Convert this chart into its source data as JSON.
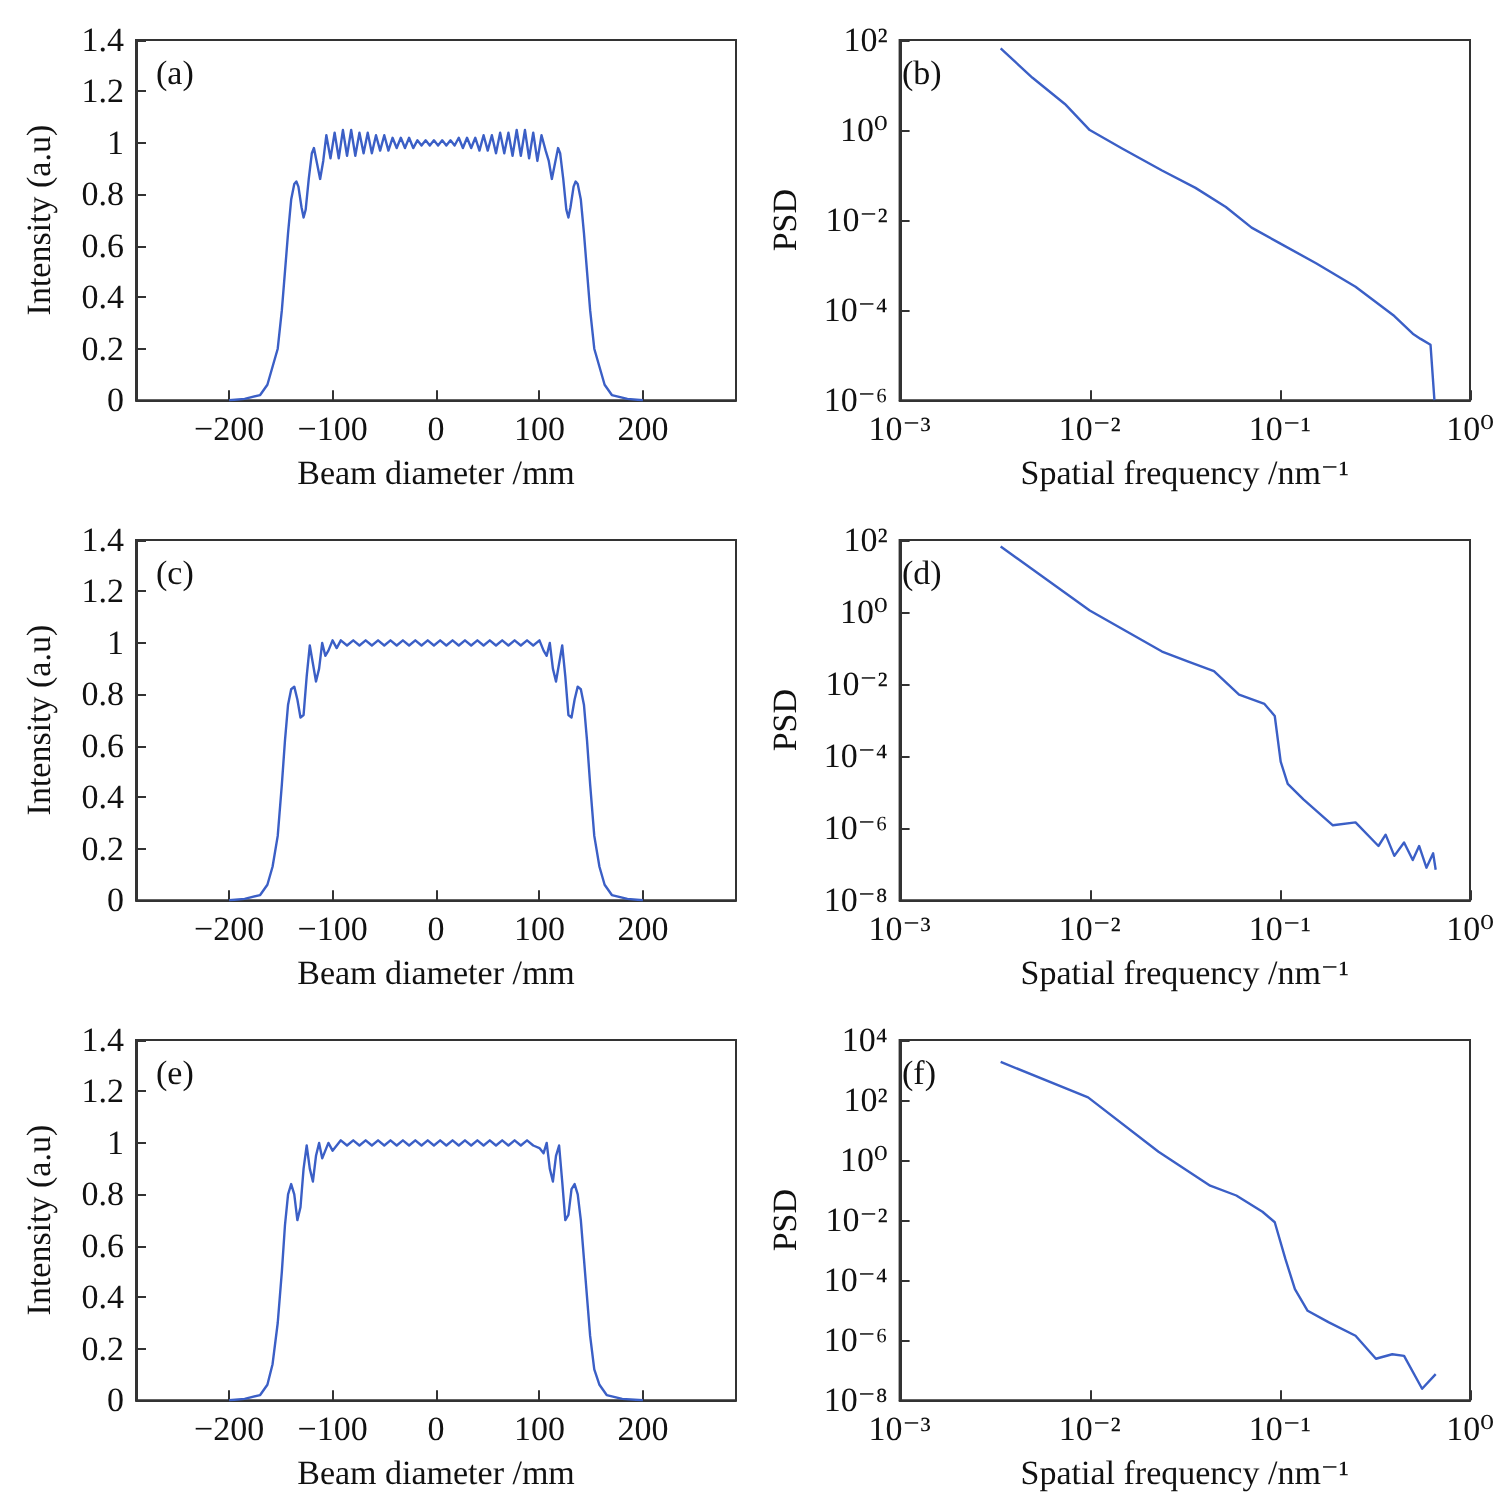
{
  "chart_data": [
    {
      "type": "line",
      "color": "#3b5fc6",
      "xlabel": "Beam diameter /mm",
      "ylabel": "Intensity (a.u)",
      "annotations": [
        "(a)"
      ],
      "xlim": [
        -290,
        290
      ],
      "ylim": [
        0,
        1.4
      ],
      "xticks": [
        {
          "value": -200,
          "label": "−200"
        },
        {
          "value": -100,
          "label": "−100"
        },
        0,
        100,
        200
      ],
      "yticks": [
        0,
        0.2,
        0.4,
        0.6,
        0.8,
        1,
        1.2,
        1.4
      ],
      "x": [
        -200,
        -185,
        -170,
        -163,
        -158,
        -153,
        -149,
        -146,
        -143,
        -140,
        -137,
        -135,
        -133,
        -130,
        -128,
        -126,
        -123,
        -120,
        -118,
        -115,
        -112,
        -109,
        -106,
        -102,
        -98,
        -94,
        -90,
        -86,
        -82,
        -78,
        -74,
        -70,
        -66,
        -62,
        -58,
        -54,
        -50,
        -46,
        -42,
        -38,
        -34,
        -30,
        -26,
        -22,
        -18,
        -14,
        -10,
        -6,
        -2,
        2,
        6,
        10,
        14,
        18,
        22,
        26,
        30,
        34,
        38,
        42,
        46,
        50,
        54,
        58,
        62,
        66,
        70,
        74,
        78,
        82,
        86,
        90,
        94,
        98,
        102,
        106,
        109,
        112,
        115,
        118,
        120,
        123,
        126,
        128,
        130,
        133,
        135,
        137,
        140,
        143,
        146,
        149,
        153,
        158,
        163,
        170,
        185,
        200
      ],
      "values": [
        0,
        0.005,
        0.02,
        0.06,
        0.13,
        0.2,
        0.35,
        0.5,
        0.65,
        0.78,
        0.84,
        0.85,
        0.83,
        0.75,
        0.71,
        0.74,
        0.86,
        0.96,
        0.98,
        0.92,
        0.86,
        0.93,
        1.03,
        0.94,
        1.04,
        0.94,
        1.05,
        0.95,
        1.05,
        0.95,
        1.04,
        0.96,
        1.04,
        0.96,
        1.03,
        0.97,
        1.03,
        0.97,
        1.02,
        0.98,
        1.02,
        0.98,
        1.02,
        0.98,
        1.01,
        0.99,
        1.01,
        0.99,
        1.01,
        0.99,
        1.01,
        0.99,
        1.01,
        0.99,
        1.02,
        0.98,
        1.02,
        0.98,
        1.02,
        0.97,
        1.03,
        0.97,
        1.03,
        0.96,
        1.04,
        0.96,
        1.04,
        0.95,
        1.05,
        0.95,
        1.05,
        0.94,
        1.04,
        0.93,
        1.03,
        0.97,
        0.93,
        0.86,
        0.92,
        0.98,
        0.96,
        0.86,
        0.74,
        0.71,
        0.75,
        0.83,
        0.85,
        0.84,
        0.78,
        0.65,
        0.5,
        0.35,
        0.2,
        0.13,
        0.06,
        0.02,
        0.005,
        0
      ]
    },
    {
      "type": "line",
      "color": "#3b5fc6",
      "xlabel": "Spatial frequency /nm⁻¹",
      "ylabel": "PSD",
      "annotations": [
        "(b)"
      ],
      "log": "xy",
      "xlim": [
        0.001,
        1
      ],
      "ylim": [
        1e-06,
        100
      ],
      "xticks": [
        {
          "value": 0.001,
          "label": "10⁻³"
        },
        {
          "value": 0.01,
          "label": "10⁻²"
        },
        {
          "value": 0.1,
          "label": "10⁻¹"
        },
        {
          "value": 1,
          "label": "10⁰"
        }
      ],
      "yticks": [
        {
          "value": 1e-06,
          "label": "10⁻⁶"
        },
        {
          "value": 0.0001,
          "label": "10⁻⁴"
        },
        {
          "value": 0.01,
          "label": "10⁻²"
        },
        {
          "value": 1,
          "label": "10⁰"
        },
        {
          "value": 100,
          "label": "10²"
        }
      ],
      "x": [
        0.0034,
        0.005,
        0.0074,
        0.01,
        0.0148,
        0.024,
        0.036,
        0.052,
        0.071,
        0.098,
        0.155,
        0.25,
        0.4,
        0.5,
        0.55,
        0.62,
        0.65
      ],
      "values": [
        65,
        14.5,
        3.8,
        1.0,
        0.39,
        0.126,
        0.052,
        0.0195,
        0.0068,
        0.0032,
        0.0011,
        0.00033,
        7.4e-05,
        3e-05,
        2.3e-05,
        1.7e-05,
        1e-06
      ]
    },
    {
      "type": "line",
      "color": "#3b5fc6",
      "xlabel": "Beam diameter /mm",
      "ylabel": "Intensity (a.u)",
      "annotations": [
        "(c)"
      ],
      "xlim": [
        -290,
        290
      ],
      "ylim": [
        0,
        1.4
      ],
      "xticks": [
        {
          "value": -200,
          "label": "−200"
        },
        {
          "value": -100,
          "label": "−100"
        },
        0,
        100,
        200
      ],
      "yticks": [
        0,
        0.2,
        0.4,
        0.6,
        0.8,
        1,
        1.2,
        1.4
      ],
      "x": [
        -200,
        -185,
        -170,
        -163,
        -158,
        -153,
        -149,
        -146,
        -143,
        -140,
        -137,
        -134,
        -131,
        -128,
        -125,
        -122,
        -119,
        -116,
        -113,
        -110,
        -107,
        -104,
        -100,
        -96,
        -92,
        -86,
        -80,
        -74,
        -68,
        -62,
        -56,
        -50,
        -44,
        -38,
        -32,
        -26,
        -20,
        -14,
        -8,
        -2,
        4,
        10,
        16,
        22,
        28,
        34,
        40,
        46,
        52,
        58,
        64,
        70,
        76,
        82,
        88,
        94,
        100,
        104,
        107,
        110,
        113,
        116,
        119,
        122,
        125,
        128,
        131,
        134,
        137,
        140,
        143,
        146,
        149,
        153,
        158,
        163,
        170,
        185,
        200
      ],
      "values": [
        0,
        0.005,
        0.02,
        0.06,
        0.13,
        0.25,
        0.45,
        0.62,
        0.76,
        0.82,
        0.83,
        0.78,
        0.71,
        0.72,
        0.87,
        0.99,
        0.92,
        0.85,
        0.9,
        1.0,
        0.95,
        0.97,
        1.01,
        0.98,
        1.01,
        0.99,
        1.01,
        0.99,
        1.01,
        0.99,
        1.01,
        0.99,
        1.01,
        0.99,
        1.01,
        0.99,
        1.01,
        0.99,
        1.01,
        0.99,
        1.01,
        0.99,
        1.01,
        0.99,
        1.01,
        0.99,
        1.01,
        0.99,
        1.01,
        0.99,
        1.01,
        0.99,
        1.01,
        0.99,
        1.01,
        0.99,
        1.01,
        0.97,
        0.95,
        1.0,
        0.9,
        0.85,
        0.92,
        0.99,
        0.87,
        0.72,
        0.71,
        0.78,
        0.83,
        0.82,
        0.76,
        0.62,
        0.45,
        0.25,
        0.13,
        0.06,
        0.02,
        0.005,
        0
      ]
    },
    {
      "type": "line",
      "color": "#3b5fc6",
      "xlabel": "Spatial frequency /nm⁻¹",
      "ylabel": "PSD",
      "annotations": [
        "(d)"
      ],
      "log": "xy",
      "xlim": [
        0.001,
        1
      ],
      "ylim": [
        1e-08,
        100
      ],
      "xticks": [
        {
          "value": 0.001,
          "label": "10⁻³"
        },
        {
          "value": 0.01,
          "label": "10⁻²"
        },
        {
          "value": 0.1,
          "label": "10⁻¹"
        },
        {
          "value": 1,
          "label": "10⁰"
        }
      ],
      "yticks": [
        {
          "value": 1e-08,
          "label": "10⁻⁸"
        },
        {
          "value": 1e-06,
          "label": "10⁻⁶"
        },
        {
          "value": 0.0001,
          "label": "10⁻⁴"
        },
        {
          "value": 0.01,
          "label": "10⁻²"
        },
        {
          "value": 1,
          "label": "10⁰"
        },
        {
          "value": 100,
          "label": "10²"
        }
      ],
      "x": [
        0.0034,
        0.01,
        0.024,
        0.033,
        0.045,
        0.061,
        0.083,
        0.094,
        0.101,
        0.11,
        0.133,
        0.19,
        0.25,
        0.33,
        0.36,
        0.4,
        0.45,
        0.5,
        0.54,
        0.59,
        0.64,
        0.66
      ],
      "values": [
        66,
        1.1,
        0.08,
        0.042,
        0.023,
        0.0051,
        0.0028,
        0.0013,
        7e-05,
        1.7e-05,
        6.3e-06,
        1.2e-06,
        1.45e-06,
        3.2e-07,
        6.6e-07,
        1.7e-07,
        4e-07,
        1.3e-07,
        3.2e-07,
        8e-08,
        2e-07,
        7e-08
      ]
    },
    {
      "type": "line",
      "color": "#3b5fc6",
      "xlabel": "Beam diameter /mm",
      "ylabel": "Intensity (a.u)",
      "annotations": [
        "(e)"
      ],
      "xlim": [
        -290,
        290
      ],
      "ylim": [
        0,
        1.4
      ],
      "xticks": [
        {
          "value": -200,
          "label": "−200"
        },
        {
          "value": -100,
          "label": "−100"
        },
        0,
        100,
        200
      ],
      "yticks": [
        0,
        0.2,
        0.4,
        0.6,
        0.8,
        1,
        1.2,
        1.4
      ],
      "x": [
        -200,
        -185,
        -170,
        -163,
        -158,
        -153,
        -149,
        -146,
        -143,
        -140,
        -137,
        -134,
        -131,
        -128,
        -125,
        -122,
        -119,
        -116,
        -113,
        -110,
        -107,
        -104,
        -100,
        -92,
        -86,
        -80,
        -74,
        -68,
        -62,
        -56,
        -50,
        -44,
        -38,
        -32,
        -26,
        -20,
        -14,
        -8,
        -2,
        4,
        10,
        16,
        22,
        28,
        34,
        40,
        46,
        52,
        58,
        64,
        70,
        76,
        82,
        88,
        94,
        100,
        104,
        107,
        110,
        113,
        116,
        119,
        122,
        125,
        128,
        131,
        134,
        137,
        140,
        143,
        146,
        149,
        153,
        158,
        165,
        180,
        200
      ],
      "values": [
        0,
        0.005,
        0.02,
        0.06,
        0.14,
        0.3,
        0.5,
        0.68,
        0.8,
        0.84,
        0.8,
        0.7,
        0.75,
        0.9,
        0.99,
        0.9,
        0.85,
        0.95,
        1.0,
        0.94,
        0.97,
        1.0,
        0.97,
        1.01,
        0.99,
        1.01,
        0.99,
        1.01,
        0.99,
        1.01,
        0.99,
        1.01,
        0.99,
        1.01,
        0.99,
        1.01,
        0.99,
        1.01,
        0.99,
        1.01,
        0.99,
        1.01,
        0.99,
        1.01,
        0.99,
        1.01,
        0.99,
        1.01,
        0.99,
        1.01,
        0.99,
        1.01,
        0.99,
        1.01,
        0.99,
        0.98,
        0.96,
        1.0,
        0.9,
        0.85,
        0.95,
        0.99,
        0.85,
        0.7,
        0.72,
        0.82,
        0.84,
        0.8,
        0.7,
        0.55,
        0.4,
        0.25,
        0.12,
        0.06,
        0.02,
        0.005,
        0
      ]
    },
    {
      "type": "line",
      "color": "#3b5fc6",
      "xlabel": "Spatial frequency /nm⁻¹",
      "ylabel": "PSD",
      "annotations": [
        "(f)"
      ],
      "log": "xy",
      "xlim": [
        0.001,
        1
      ],
      "ylim": [
        1e-08,
        10000
      ],
      "xticks": [
        {
          "value": 0.001,
          "label": "10⁻³"
        },
        {
          "value": 0.01,
          "label": "10⁻²"
        },
        {
          "value": 0.1,
          "label": "10⁻¹"
        },
        {
          "value": 1,
          "label": "10⁰"
        }
      ],
      "yticks": [
        {
          "value": 1e-08,
          "label": "10⁻⁸"
        },
        {
          "value": 1e-06,
          "label": "10⁻⁶"
        },
        {
          "value": 0.0001,
          "label": "10⁻⁴"
        },
        {
          "value": 0.01,
          "label": "10⁻²"
        },
        {
          "value": 1,
          "label": "10⁰"
        },
        {
          "value": 100,
          "label": "10²"
        },
        {
          "value": 10000,
          "label": "10⁴"
        }
      ],
      "x": [
        0.0034,
        0.0098,
        0.023,
        0.043,
        0.059,
        0.081,
        0.094,
        0.107,
        0.12,
        0.14,
        0.18,
        0.25,
        0.32,
        0.39,
        0.45,
        0.56,
        0.66
      ],
      "values": [
        1860,
        123,
        1.9,
        0.14,
        0.066,
        0.019,
        0.0085,
        0.0005,
        5e-05,
        9.5e-06,
        4e-06,
        1.4e-06,
        2.4e-07,
        3.4e-07,
        3e-07,
        2.4e-08,
        7.4e-08
      ]
    }
  ]
}
